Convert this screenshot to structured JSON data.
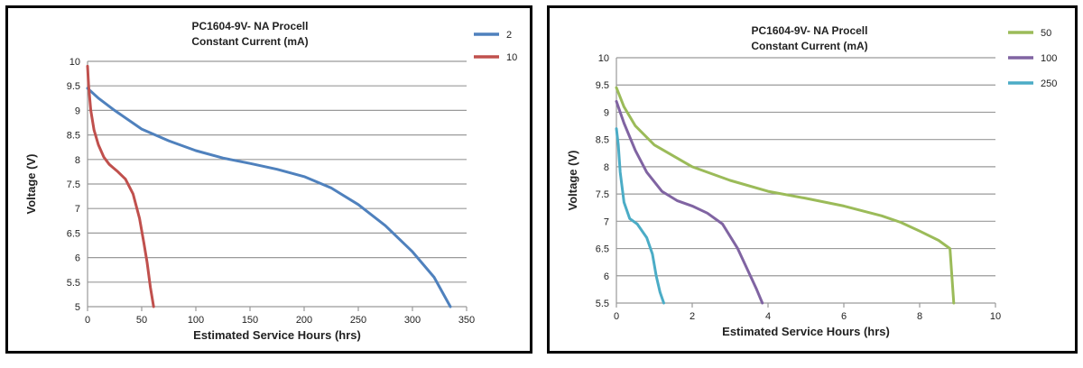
{
  "chart_data": [
    {
      "type": "line",
      "title": [
        "PC1604-9V- NA Procell",
        "Constant Current (mA)"
      ],
      "xlabel": "Estimated Service Hours (hrs)",
      "ylabel": "Voltage (V)",
      "xlim": [
        0,
        350
      ],
      "ylim": [
        5,
        10
      ],
      "xticks": [
        0,
        50,
        100,
        150,
        200,
        250,
        300,
        350
      ],
      "yticks": [
        5,
        5.5,
        6,
        6.5,
        7,
        7.5,
        8,
        8.5,
        9,
        9.5,
        10
      ],
      "grid": "horizontal",
      "legend_position": "top-right",
      "series": [
        {
          "name": "2",
          "color": "#4f81bd",
          "points": [
            [
              0,
              9.45
            ],
            [
              10,
              9.25
            ],
            [
              25,
              9.0
            ],
            [
              50,
              8.62
            ],
            [
              75,
              8.38
            ],
            [
              100,
              8.18
            ],
            [
              125,
              8.03
            ],
            [
              150,
              7.92
            ],
            [
              175,
              7.8
            ],
            [
              200,
              7.65
            ],
            [
              225,
              7.42
            ],
            [
              250,
              7.08
            ],
            [
              275,
              6.65
            ],
            [
              300,
              6.12
            ],
            [
              320,
              5.6
            ],
            [
              335,
              5.0
            ]
          ]
        },
        {
          "name": "10",
          "color": "#c0504d",
          "points": [
            [
              0,
              9.9
            ],
            [
              1,
              9.5
            ],
            [
              3,
              9.0
            ],
            [
              6,
              8.6
            ],
            [
              10,
              8.3
            ],
            [
              15,
              8.05
            ],
            [
              20,
              7.9
            ],
            [
              28,
              7.75
            ],
            [
              35,
              7.6
            ],
            [
              42,
              7.3
            ],
            [
              48,
              6.8
            ],
            [
              52,
              6.3
            ],
            [
              55,
              5.9
            ],
            [
              58,
              5.4
            ],
            [
              61,
              5.0
            ]
          ]
        }
      ]
    },
    {
      "type": "line",
      "title": [
        "PC1604-9V- NA Procell",
        "Constant Current  (mA)"
      ],
      "xlabel": "Estimated Service Hours (hrs)",
      "ylabel": "Voltage (V)",
      "xlim": [
        0,
        10
      ],
      "ylim": [
        5.5,
        10
      ],
      "xticks": [
        0,
        2,
        4,
        6,
        8,
        10
      ],
      "yticks": [
        5.5,
        6,
        6.5,
        7,
        7.5,
        8,
        8.5,
        9,
        9.5,
        10
      ],
      "grid": "horizontal",
      "legend_position": "top-right",
      "series": [
        {
          "name": "50",
          "color": "#9bbb59",
          "points": [
            [
              0,
              9.45
            ],
            [
              0.2,
              9.1
            ],
            [
              0.5,
              8.75
            ],
            [
              1,
              8.4
            ],
            [
              2,
              8.0
            ],
            [
              3,
              7.75
            ],
            [
              4,
              7.55
            ],
            [
              5,
              7.42
            ],
            [
              6,
              7.28
            ],
            [
              7,
              7.1
            ],
            [
              7.5,
              6.98
            ],
            [
              8,
              6.82
            ],
            [
              8.5,
              6.65
            ],
            [
              8.8,
              6.5
            ],
            [
              8.85,
              6.0
            ],
            [
              8.9,
              5.5
            ]
          ]
        },
        {
          "name": "100",
          "color": "#8064a2",
          "points": [
            [
              0,
              9.2
            ],
            [
              0.2,
              8.8
            ],
            [
              0.5,
              8.3
            ],
            [
              0.8,
              7.9
            ],
            [
              1.2,
              7.55
            ],
            [
              1.6,
              7.38
            ],
            [
              2,
              7.28
            ],
            [
              2.4,
              7.15
            ],
            [
              2.8,
              6.95
            ],
            [
              3.2,
              6.5
            ],
            [
              3.5,
              6.05
            ],
            [
              3.7,
              5.75
            ],
            [
              3.85,
              5.5
            ]
          ]
        },
        {
          "name": "250",
          "color": "#4bacc6",
          "points": [
            [
              0,
              8.7
            ],
            [
              0.05,
              8.4
            ],
            [
              0.1,
              7.9
            ],
            [
              0.2,
              7.35
            ],
            [
              0.35,
              7.05
            ],
            [
              0.55,
              6.95
            ],
            [
              0.8,
              6.7
            ],
            [
              0.95,
              6.4
            ],
            [
              1.05,
              6.0
            ],
            [
              1.15,
              5.7
            ],
            [
              1.25,
              5.5
            ]
          ]
        }
      ]
    }
  ]
}
